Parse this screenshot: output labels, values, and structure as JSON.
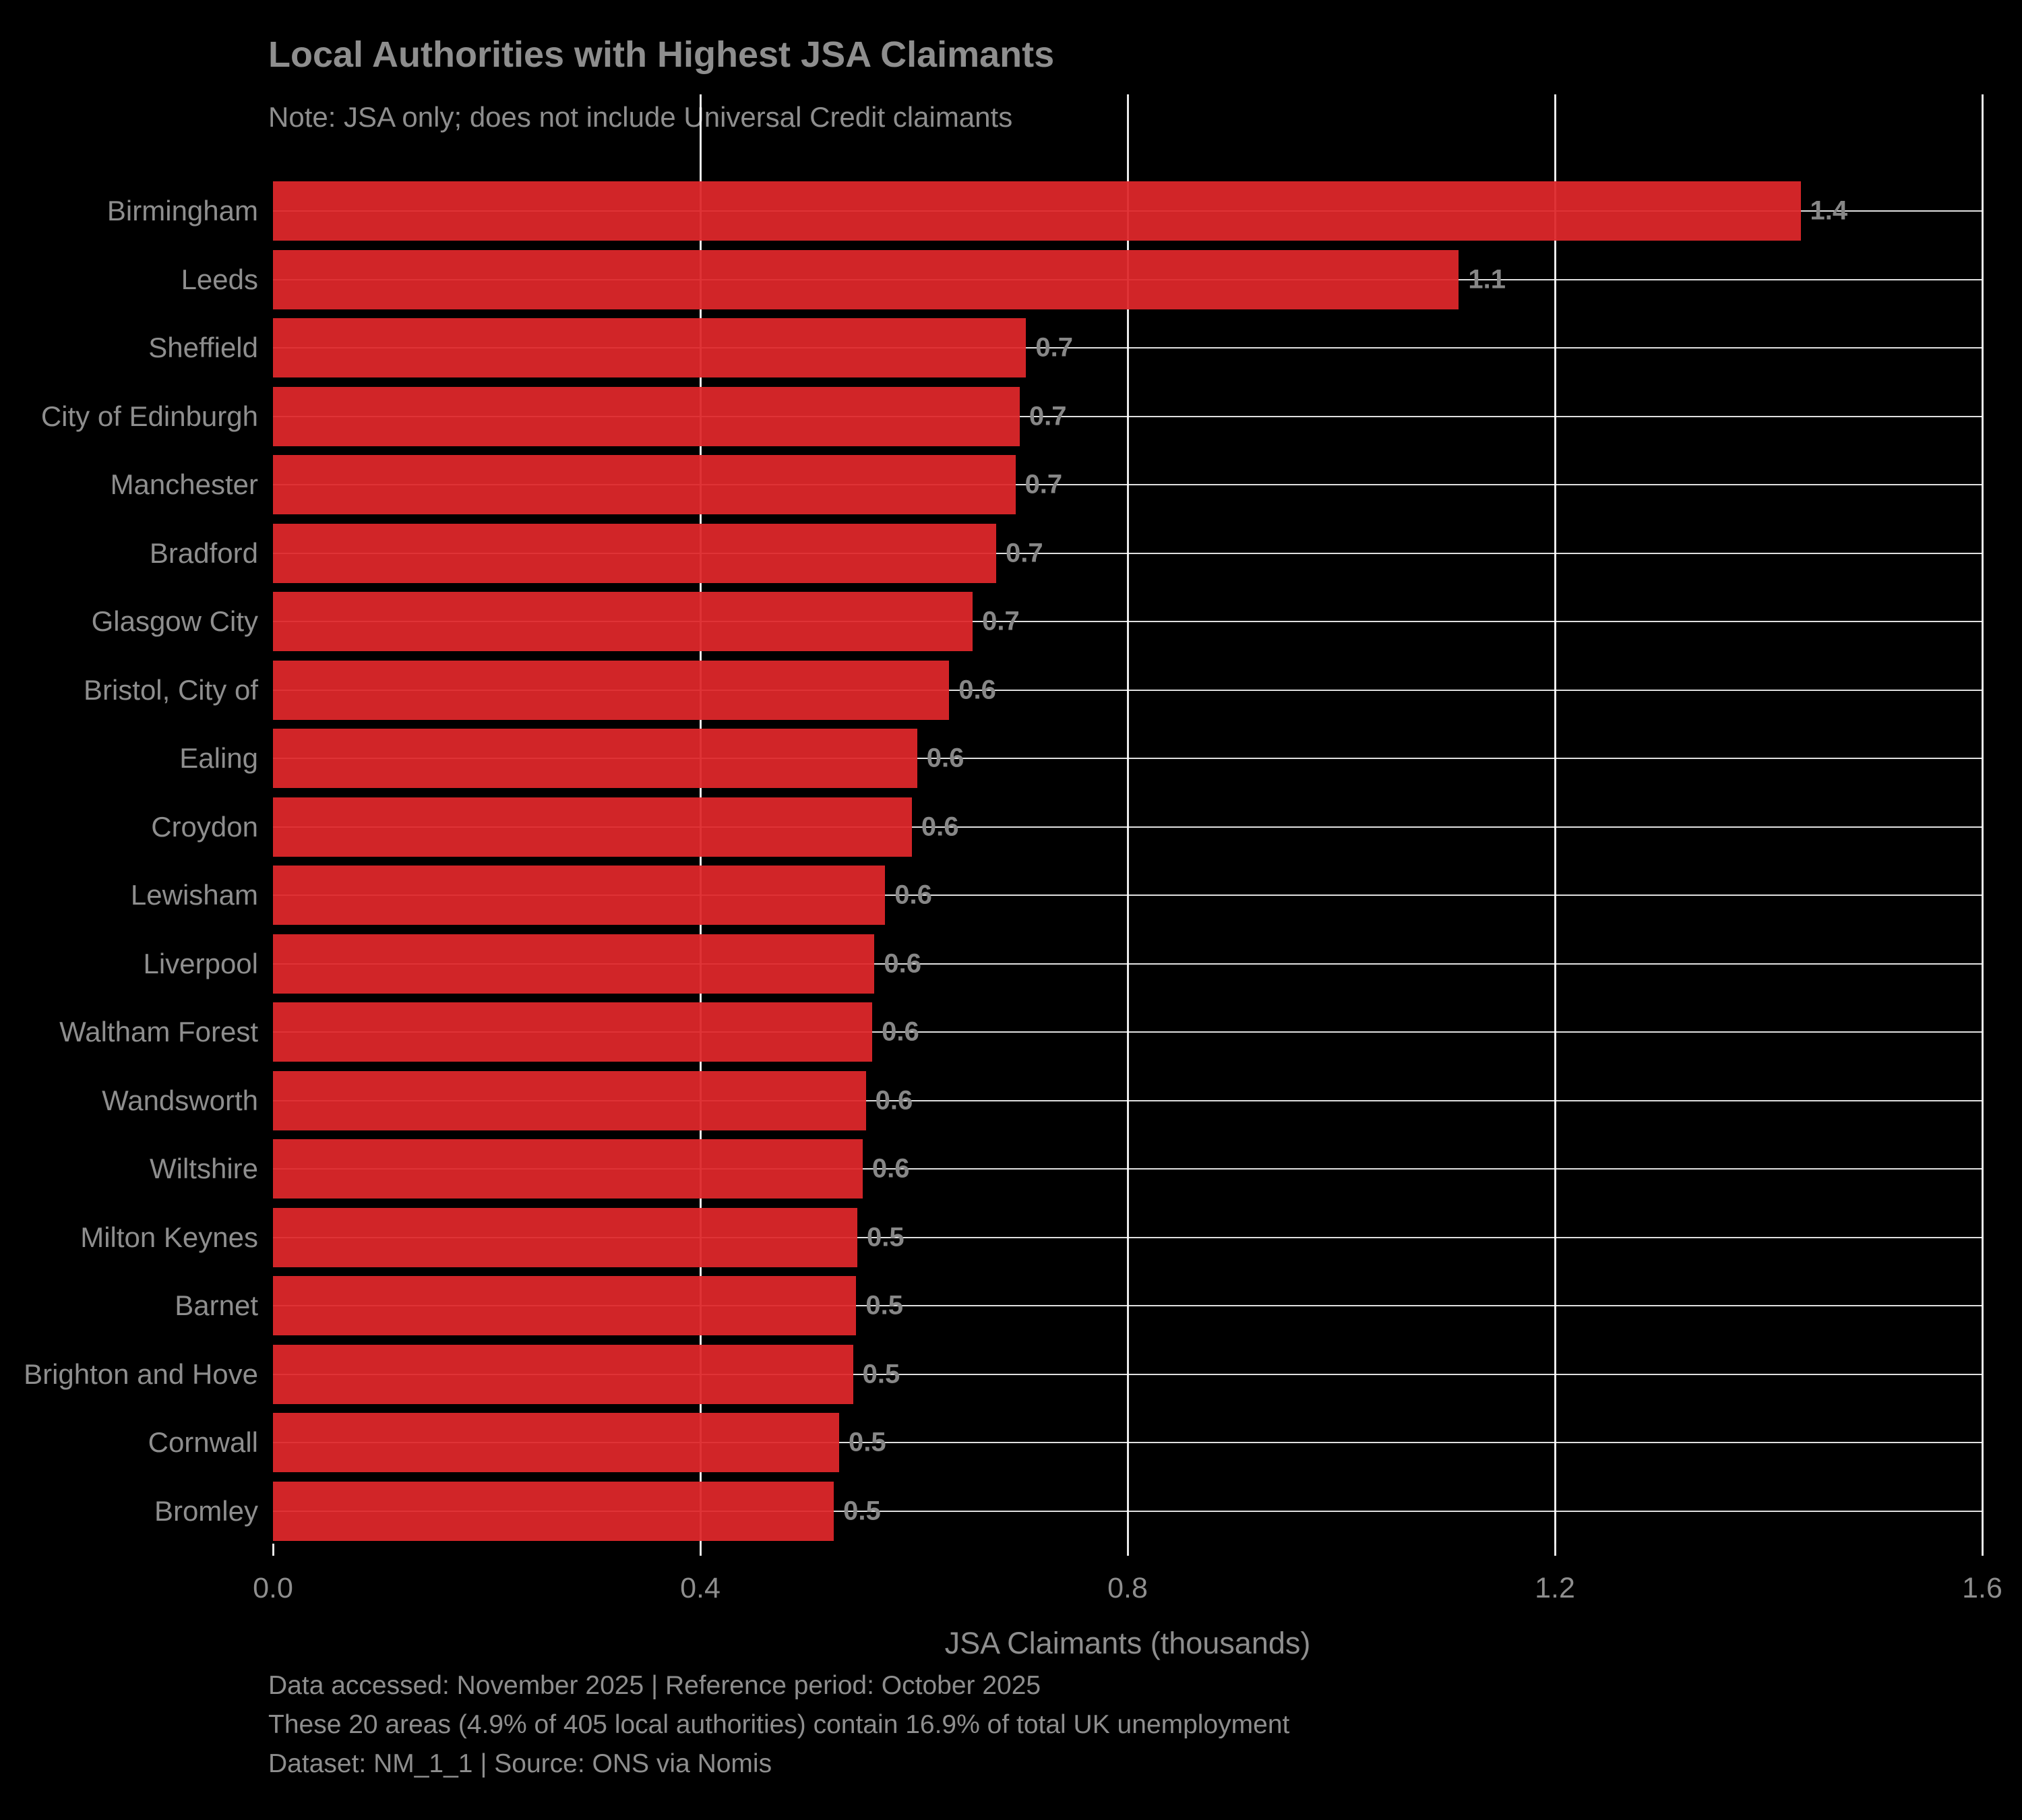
{
  "title": "Local Authorities with Highest JSA Claimants",
  "subtitle": "Note: JSA only; does not include Universal Credit claimants",
  "chart_data": {
    "type": "bar",
    "orientation": "horizontal",
    "title": "Local Authorities with Highest JSA Claimants",
    "subtitle": "Note: JSA only; does not include Universal Credit claimants",
    "xlabel": "JSA Claimants (thousands)",
    "ylabel": "",
    "xlim": [
      0,
      1.6
    ],
    "xticks": [
      0.0,
      0.4,
      0.8,
      1.2,
      1.6
    ],
    "xtick_labels": [
      "0.0",
      "0.4",
      "0.8",
      "1.2",
      "1.6"
    ],
    "grid": true,
    "legend": false,
    "background_color": "#000000",
    "bar_color": "#d2272a",
    "text_color": "#8e8e8e",
    "categories": [
      "Birmingham",
      "Leeds",
      "Sheffield",
      "City of Edinburgh",
      "Manchester",
      "Bradford",
      "Glasgow City",
      "Bristol, City of",
      "Ealing",
      "Croydon",
      "Lewisham",
      "Liverpool",
      "Waltham Forest",
      "Wandsworth",
      "Wiltshire",
      "Milton Keynes",
      "Barnet",
      "Brighton and Hove",
      "Cornwall",
      "Bromley"
    ],
    "values": [
      1.43,
      1.11,
      0.705,
      0.699,
      0.695,
      0.677,
      0.655,
      0.633,
      0.603,
      0.598,
      0.573,
      0.563,
      0.561,
      0.555,
      0.552,
      0.547,
      0.546,
      0.543,
      0.53,
      0.525
    ],
    "value_labels": [
      "1.4",
      "1.1",
      "0.7",
      "0.7",
      "0.7",
      "0.7",
      "0.7",
      "0.6",
      "0.6",
      "0.6",
      "0.6",
      "0.6",
      "0.6",
      "0.6",
      "0.6",
      "0.5",
      "0.5",
      "0.5",
      "0.5",
      "0.5"
    ]
  },
  "footer": {
    "line1": "Data accessed: November 2025 | Reference period: October 2025",
    "line2": "These 20 areas (4.9% of 405 local authorities) contain 16.9% of total UK unemployment",
    "line3": "Dataset: NM_1_1 | Source: ONS via Nomis"
  }
}
